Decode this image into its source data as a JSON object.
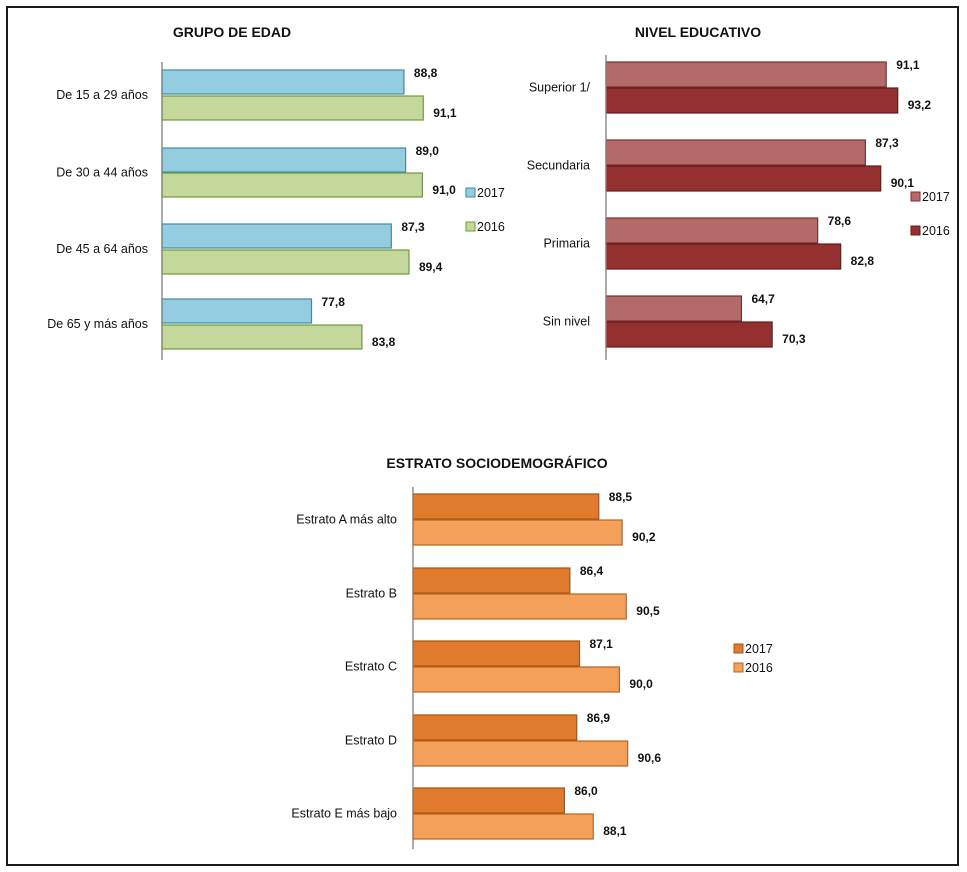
{
  "chart_data": [
    {
      "type": "bar",
      "orientation": "horizontal",
      "title": "GRUPO DE EDAD",
      "categories": [
        "De 15 a 29 años",
        "De 30 a 44 años",
        "De 45 a 64 años",
        "De 65 y más años"
      ],
      "series": [
        {
          "name": "2017",
          "values": [
            88.8,
            89.0,
            87.3,
            77.8
          ],
          "labels": [
            "88,8",
            "89,0",
            "87,3",
            "77,8"
          ],
          "color": "#94cddf",
          "stroke": "#3d8aa5"
        },
        {
          "name": "2016",
          "values": [
            91.1,
            91.0,
            89.4,
            83.8
          ],
          "labels": [
            "91,1",
            "91,0",
            "89,4",
            "83,8"
          ],
          "color": "#c3d89a",
          "stroke": "#6f9a3a"
        }
      ],
      "xlim": [
        60,
        100
      ],
      "legend": "right",
      "grid": false
    },
    {
      "type": "bar",
      "orientation": "horizontal",
      "title": "NIVEL EDUCATIVO",
      "categories": [
        "Superior 1/",
        "Secundaria",
        "Primaria",
        "Sin nivel"
      ],
      "series": [
        {
          "name": "2017",
          "values": [
            91.1,
            87.3,
            78.6,
            64.7
          ],
          "labels": [
            "91,1",
            "87,3",
            "78,6",
            "64,7"
          ],
          "color": "#b56a6a",
          "stroke": "#7a2e2e"
        },
        {
          "name": "2016",
          "values": [
            93.2,
            90.1,
            82.8,
            70.3
          ],
          "labels": [
            "93,2",
            "90,1",
            "82,8",
            "70,3"
          ],
          "color": "#943030",
          "stroke": "#6a1a1a"
        }
      ],
      "xlim": [
        40,
        100
      ],
      "legend": "right",
      "grid": false
    },
    {
      "type": "bar",
      "orientation": "horizontal",
      "title": "ESTRATO SOCIODEMOGRÁFICO",
      "categories": [
        "Estrato A más alto",
        "Estrato B",
        "Estrato C",
        "Estrato D",
        "Estrato E más bajo"
      ],
      "series": [
        {
          "name": "2017",
          "values": [
            88.5,
            86.4,
            87.1,
            86.9,
            86.0
          ],
          "labels": [
            "88,5",
            "86,4",
            "87,1",
            "86,9",
            "86,0"
          ],
          "color": "#e07a2c",
          "stroke": "#a85410"
        },
        {
          "name": "2016",
          "values": [
            90.2,
            90.5,
            90.0,
            90.6,
            88.1
          ],
          "labels": [
            "90,2",
            "90,5",
            "90,0",
            "90,6",
            "88,1"
          ],
          "color": "#f5a05a",
          "stroke": "#b86420"
        }
      ],
      "xlim": [
        75,
        100
      ],
      "legend": "right",
      "grid": false
    }
  ]
}
